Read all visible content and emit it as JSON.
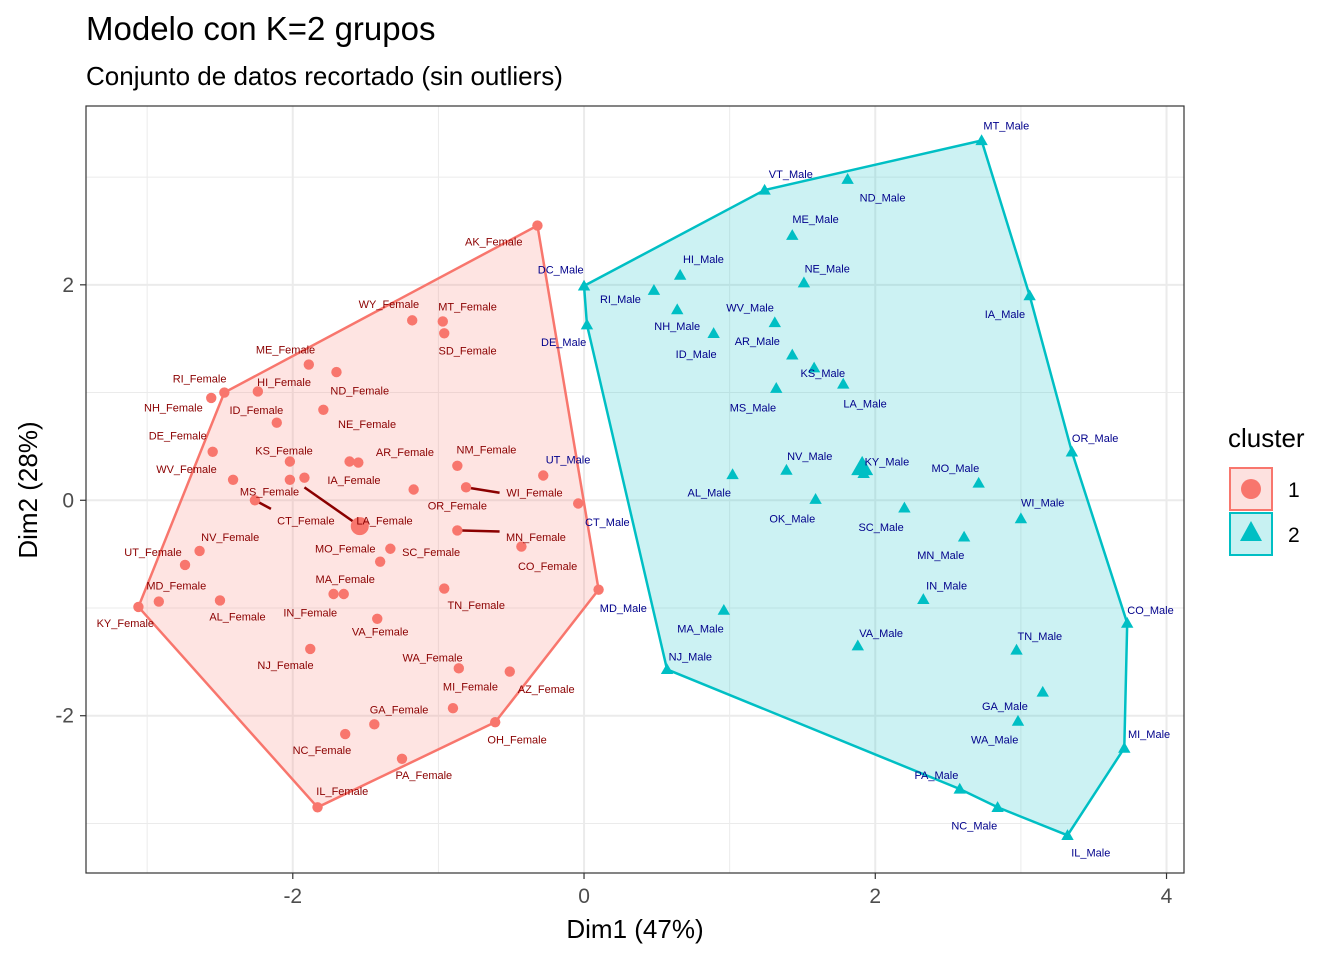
{
  "title": "Modelo con K=2 grupos",
  "subtitle": "Conjunto de datos recortado (sin outliers)",
  "chart_data": {
    "type": "scatter",
    "xlabel": "Dim1 (47%)",
    "ylabel": "Dim2 (28%)",
    "xlim": [
      -3.42,
      4.12
    ],
    "ylim": [
      -3.46,
      3.66
    ],
    "xticks": [
      -2,
      0,
      2,
      4
    ],
    "yticks": [
      -2,
      0,
      2
    ],
    "xtick_labels": [
      "-2",
      "0",
      "2",
      "4"
    ],
    "ytick_labels": [
      "-2",
      "0",
      "2"
    ],
    "grid": true,
    "legend": {
      "title": "cluster",
      "placement": "right",
      "entries": [
        "1",
        "2"
      ]
    },
    "series": [
      {
        "name": "1",
        "shape": "circle",
        "color": "#F8766D",
        "label_color": "#8B0000",
        "centroid": [
          -1.54,
          -0.24
        ],
        "hull": [
          "KY_Female",
          "RI_Female",
          "AK_Female",
          "MD_Female_edge",
          "OH_Female",
          "IL_Female"
        ],
        "points": [
          {
            "label": "AK_Female",
            "x": -0.32,
            "y": 2.55
          },
          {
            "label": "WY_Female",
            "x": -1.18,
            "y": 1.67
          },
          {
            "label": "MT_Female",
            "x": -0.97,
            "y": 1.66
          },
          {
            "label": "SD_Female",
            "x": -0.96,
            "y": 1.55
          },
          {
            "label": "ME_Female",
            "x": -1.89,
            "y": 1.26
          },
          {
            "label": "ND_Female",
            "x": -1.7,
            "y": 1.19
          },
          {
            "label": "HI_Female",
            "x": -2.24,
            "y": 1.01
          },
          {
            "label": "RI_Female",
            "x": -2.47,
            "y": 1.0
          },
          {
            "label": "NH_Female",
            "x": -2.56,
            "y": 0.95
          },
          {
            "label": "NE_Female",
            "x": -1.79,
            "y": 0.84
          },
          {
            "label": "ID_Female",
            "x": -2.11,
            "y": 0.72
          },
          {
            "label": "DE_Female",
            "x": -2.55,
            "y": 0.45
          },
          {
            "label": "KS_Female",
            "x": -2.02,
            "y": 0.36
          },
          {
            "label": "AR_Female",
            "x": -1.61,
            "y": 0.36
          },
          {
            "label": "NM_Female",
            "x": -1.55,
            "y": 0.35
          },
          {
            "label": "WV_Female",
            "x": -0.87,
            "y": 0.32
          },
          {
            "label": "IA_Female",
            "x": -1.92,
            "y": 0.21
          },
          {
            "label": "MS_Female",
            "x": -2.41,
            "y": 0.19
          },
          {
            "label": "OR_Female",
            "x": -1.17,
            "y": 0.1
          },
          {
            "label": "CT_Female",
            "x": -2.02,
            "y": 0.19
          },
          {
            "label": "UT_Female",
            "x": -2.64,
            "y": -0.47
          },
          {
            "label": "NV_Female",
            "x": -2.74,
            "y": -0.6
          },
          {
            "label": "MD_Female",
            "x": -2.92,
            "y": -0.94
          },
          {
            "label": "KY_Female",
            "x": -3.06,
            "y": -0.99
          },
          {
            "label": "AL_Female",
            "x": -2.5,
            "y": -0.93
          },
          {
            "label": "MO_Female",
            "x": -1.33,
            "y": -0.45
          },
          {
            "label": "SC_Female",
            "x": -1.4,
            "y": -0.57
          },
          {
            "label": "MA_Female",
            "x": -1.72,
            "y": -0.87
          },
          {
            "label": "IN_Female",
            "x": -1.65,
            "y": -0.87
          },
          {
            "label": "VA_Female",
            "x": -1.42,
            "y": -1.1
          },
          {
            "label": "TN_Female",
            "x": -0.96,
            "y": -0.82
          },
          {
            "label": "NJ_Female",
            "x": -1.88,
            "y": -1.38
          },
          {
            "label": "WA_Female",
            "x": -0.86,
            "y": -1.56
          },
          {
            "label": "MI_Female",
            "x": -0.51,
            "y": -1.59
          },
          {
            "label": "AZ_Female",
            "x": -0.9,
            "y": -1.93
          },
          {
            "label": "GA_Female",
            "x": -1.44,
            "y": -2.08
          },
          {
            "label": "NC_Female",
            "x": -1.64,
            "y": -2.17
          },
          {
            "label": "PA_Female",
            "x": -1.25,
            "y": -2.4
          },
          {
            "label": "OH_Female",
            "x": -0.61,
            "y": -2.06
          },
          {
            "label": "IL_Female",
            "x": -1.83,
            "y": -2.85
          },
          {
            "label": "WI_Female",
            "x": -0.81,
            "y": 0.12
          },
          {
            "label": "MN_Female",
            "x": -0.87,
            "y": -0.28
          },
          {
            "label": "CO_Female",
            "x": -0.43,
            "y": -0.43
          },
          {
            "label": "UT_Female_b",
            "x": -0.28,
            "y": 0.23
          },
          {
            "label": "CT_Female_b",
            "x": -0.04,
            "y": -0.03
          },
          {
            "label": "MD_Female_edge",
            "x": 0.1,
            "y": -0.83
          },
          {
            "label": "LA_Female",
            "x": -2.26,
            "y": 0.0
          }
        ]
      },
      {
        "name": "2",
        "shape": "triangle",
        "color": "#00BFC4",
        "label_color": "#00008B",
        "centroid": [
          1.91,
          0.31
        ],
        "hull": [
          "DC_Male",
          "VT_Male",
          "MT_Male",
          "IA_Male",
          "OR_Male",
          "CO_Male",
          "MI_Male",
          "IL_Male",
          "NC_Male",
          "PA_Male",
          "NJ_Male",
          "DE_Male"
        ],
        "points": [
          {
            "label": "MT_Male",
            "x": 2.73,
            "y": 3.34
          },
          {
            "label": "VT_Male",
            "x": 1.24,
            "y": 2.88
          },
          {
            "label": "ND_Male",
            "x": 1.81,
            "y": 2.98
          },
          {
            "label": "ME_Male",
            "x": 1.43,
            "y": 2.46
          },
          {
            "label": "HI_Male",
            "x": 0.66,
            "y": 2.09
          },
          {
            "label": "DC_Male",
            "x": 0.0,
            "y": 1.99
          },
          {
            "label": "RI_Male",
            "x": 0.48,
            "y": 1.95
          },
          {
            "label": "NE_Male",
            "x": 1.51,
            "y": 2.02
          },
          {
            "label": "IA_Male",
            "x": 3.06,
            "y": 1.9
          },
          {
            "label": "NH_Male",
            "x": 0.64,
            "y": 1.77
          },
          {
            "label": "DE_Male",
            "x": 0.02,
            "y": 1.63
          },
          {
            "label": "WV_Male",
            "x": 1.31,
            "y": 1.65
          },
          {
            "label": "ID_Male",
            "x": 0.89,
            "y": 1.55
          },
          {
            "label": "AR_Male",
            "x": 1.43,
            "y": 1.35
          },
          {
            "label": "KS_Male",
            "x": 1.58,
            "y": 1.23
          },
          {
            "label": "LA_Male",
            "x": 1.78,
            "y": 1.08
          },
          {
            "label": "MS_Male",
            "x": 1.32,
            "y": 1.04
          },
          {
            "label": "OR_Male",
            "x": 3.35,
            "y": 0.45
          },
          {
            "label": "NV_Male",
            "x": 1.39,
            "y": 0.28
          },
          {
            "label": "KY_Male",
            "x": 1.92,
            "y": 0.25
          },
          {
            "label": "MO_Male",
            "x": 2.71,
            "y": 0.16
          },
          {
            "label": "AL_Male",
            "x": 1.02,
            "y": 0.24
          },
          {
            "label": "OK_Male",
            "x": 1.59,
            "y": 0.01
          },
          {
            "label": "SC_Male",
            "x": 2.2,
            "y": -0.07
          },
          {
            "label": "WI_Male",
            "x": 3.0,
            "y": -0.17
          },
          {
            "label": "MN_Male",
            "x": 2.61,
            "y": -0.34
          },
          {
            "label": "IN_Male",
            "x": 2.33,
            "y": -0.92
          },
          {
            "label": "MA_Male",
            "x": 0.96,
            "y": -1.02
          },
          {
            "label": "CO_Male",
            "x": 3.73,
            "y": -1.14
          },
          {
            "label": "VA_Male",
            "x": 1.88,
            "y": -1.35
          },
          {
            "label": "TN_Male",
            "x": 2.97,
            "y": -1.39
          },
          {
            "label": "NJ_Male",
            "x": 0.57,
            "y": -1.57
          },
          {
            "label": "GA_Male",
            "x": 3.15,
            "y": -1.78
          },
          {
            "label": "WA_Male",
            "x": 2.98,
            "y": -2.05
          },
          {
            "label": "MI_Male",
            "x": 3.71,
            "y": -2.3
          },
          {
            "label": "PA_Male",
            "x": 2.58,
            "y": -2.68
          },
          {
            "label": "NC_Male",
            "x": 2.84,
            "y": -2.85
          },
          {
            "label": "IL_Male",
            "x": 3.32,
            "y": -3.11
          },
          {
            "label": "CT_Male",
            "x": 1.91,
            "y": 0.33
          }
        ]
      }
    ]
  },
  "visible_labels": {
    "female": [
      {
        "text": "AK_Female",
        "lx": -0.62,
        "ly": 2.4
      },
      {
        "text": "WY_Female",
        "lx": -1.34,
        "ly": 1.82
      },
      {
        "text": "MT_Female",
        "lx": -0.8,
        "ly": 1.8
      },
      {
        "text": "SD_Female",
        "lx": -0.8,
        "ly": 1.39
      },
      {
        "text": "ME_Female",
        "lx": -2.05,
        "ly": 1.4
      },
      {
        "text": "ND_Female",
        "lx": -1.54,
        "ly": 1.02
      },
      {
        "text": "RI_Female",
        "lx": -2.64,
        "ly": 1.13
      },
      {
        "text": "HI_Female",
        "lx": -2.06,
        "ly": 1.1
      },
      {
        "text": "NH_Female",
        "lx": -2.82,
        "ly": 0.86
      },
      {
        "text": "ID_Female",
        "lx": -2.25,
        "ly": 0.84
      },
      {
        "text": "NE_Female",
        "lx": -1.49,
        "ly": 0.71
      },
      {
        "text": "DE_Female",
        "lx": -2.79,
        "ly": 0.6
      },
      {
        "text": "KS_Female",
        "lx": -2.06,
        "ly": 0.46
      },
      {
        "text": "AR_Female",
        "lx": -1.23,
        "ly": 0.45
      },
      {
        "text": "NM_Female",
        "lx": -0.67,
        "ly": 0.47
      },
      {
        "text": "WV_Female",
        "lx": -2.73,
        "ly": 0.29
      },
      {
        "text": "IA_Female",
        "lx": -1.58,
        "ly": 0.19
      },
      {
        "text": "UT_Male",
        "lx": -0.11,
        "ly": 0.38,
        "male": true
      },
      {
        "text": "MS_Female",
        "lx": -2.16,
        "ly": 0.08
      },
      {
        "text": "WI_Female",
        "lx": -0.34,
        "ly": 0.07
      },
      {
        "text": "OR_Female",
        "lx": -0.87,
        "ly": -0.05
      },
      {
        "text": "CT_Female",
        "lx": -1.91,
        "ly": -0.19
      },
      {
        "text": "LA_Female",
        "lx": -1.37,
        "ly": -0.19
      },
      {
        "text": "CT_Male",
        "lx": 0.16,
        "ly": -0.2,
        "male": true
      },
      {
        "text": "MN_Female",
        "lx": -0.33,
        "ly": -0.34
      },
      {
        "text": "MO_Female",
        "lx": -1.64,
        "ly": -0.45
      },
      {
        "text": "SC_Female",
        "lx": -1.05,
        "ly": -0.48
      },
      {
        "text": "UT_Female",
        "lx": -2.96,
        "ly": -0.48
      },
      {
        "text": "NV_Female",
        "lx": -2.43,
        "ly": -0.34
      },
      {
        "text": "CO_Female",
        "lx": -0.25,
        "ly": -0.61
      },
      {
        "text": "MA_Female",
        "lx": -1.64,
        "ly": -0.73
      },
      {
        "text": "MD_Female",
        "lx": -2.8,
        "ly": -0.79
      },
      {
        "text": "TN_Female",
        "lx": -0.74,
        "ly": -0.97
      },
      {
        "text": "AL_Female",
        "lx": -2.38,
        "ly": -1.08
      },
      {
        "text": "IN_Female",
        "lx": -1.88,
        "ly": -1.04
      },
      {
        "text": "KY_Female",
        "lx": -3.15,
        "ly": -1.14
      },
      {
        "text": "VA_Female",
        "lx": -1.4,
        "ly": -1.22
      },
      {
        "text": "NJ_Female",
        "lx": -2.05,
        "ly": -1.53
      },
      {
        "text": "WA_Female",
        "lx": -1.04,
        "ly": -1.46
      },
      {
        "text": "MI_Female",
        "lx": -0.78,
        "ly": -1.73
      },
      {
        "text": "AZ_Female",
        "lx": -0.26,
        "ly": -1.75
      },
      {
        "text": "GA_Female",
        "lx": -1.27,
        "ly": -1.94
      },
      {
        "text": "OH_Female",
        "lx": -0.46,
        "ly": -2.22
      },
      {
        "text": "NC_Female",
        "lx": -1.8,
        "ly": -2.32
      },
      {
        "text": "PA_Female",
        "lx": -1.1,
        "ly": -2.55
      },
      {
        "text": "IL_Female",
        "lx": -1.66,
        "ly": -2.7
      },
      {
        "text": "MD_Male",
        "lx": 0.27,
        "ly": -1.0,
        "male": true
      },
      {
        "text": "DC_Male",
        "lx": -0.16,
        "ly": 2.14,
        "male": true
      },
      {
        "text": "DE_Male",
        "lx": -0.14,
        "ly": 1.47,
        "male": true
      }
    ],
    "male": [
      {
        "text": "MT_Male",
        "lx": 2.9,
        "ly": 3.48
      },
      {
        "text": "VT_Male",
        "lx": 1.42,
        "ly": 3.03
      },
      {
        "text": "ND_Male",
        "lx": 2.05,
        "ly": 2.81
      },
      {
        "text": "ME_Male",
        "lx": 1.59,
        "ly": 2.61
      },
      {
        "text": "HI_Male",
        "lx": 0.82,
        "ly": 2.24
      },
      {
        "text": "NE_Male",
        "lx": 1.67,
        "ly": 2.15
      },
      {
        "text": "RI_Male",
        "lx": 0.25,
        "ly": 1.87
      },
      {
        "text": "NH_Male",
        "lx": 0.64,
        "ly": 1.62
      },
      {
        "text": "IA_Male",
        "lx": 2.89,
        "ly": 1.73
      },
      {
        "text": "WV_Male",
        "lx": 1.14,
        "ly": 1.79
      },
      {
        "text": "AR_Male",
        "lx": 1.19,
        "ly": 1.48
      },
      {
        "text": "ID_Male",
        "lx": 0.77,
        "ly": 1.36
      },
      {
        "text": "KS_Male",
        "lx": 1.64,
        "ly": 1.18
      },
      {
        "text": "MS_Male",
        "lx": 1.16,
        "ly": 0.86
      },
      {
        "text": "LA_Male",
        "lx": 1.93,
        "ly": 0.9
      },
      {
        "text": "OR_Male",
        "lx": 3.51,
        "ly": 0.58
      },
      {
        "text": "NV_Male",
        "lx": 1.55,
        "ly": 0.41
      },
      {
        "text": "KY_Male",
        "lx": 2.08,
        "ly": 0.36
      },
      {
        "text": "MO_Male",
        "lx": 2.55,
        "ly": 0.3
      },
      {
        "text": "AL_Male",
        "lx": 0.86,
        "ly": 0.07
      },
      {
        "text": "WI_Male",
        "lx": 3.15,
        "ly": -0.02
      },
      {
        "text": "OK_Male",
        "lx": 1.43,
        "ly": -0.17
      },
      {
        "text": "SC_Male",
        "lx": 2.04,
        "ly": -0.25
      },
      {
        "text": "MN_Male",
        "lx": 2.45,
        "ly": -0.51
      },
      {
        "text": "IN_Male",
        "lx": 2.49,
        "ly": -0.79
      },
      {
        "text": "CO_Male",
        "lx": 3.89,
        "ly": -1.02
      },
      {
        "text": "MA_Male",
        "lx": 0.8,
        "ly": -1.19
      },
      {
        "text": "VA_Male",
        "lx": 2.04,
        "ly": -1.23
      },
      {
        "text": "TN_Male",
        "lx": 3.13,
        "ly": -1.26
      },
      {
        "text": "NJ_Male",
        "lx": 0.73,
        "ly": -1.45
      },
      {
        "text": "GA_Male",
        "lx": 2.89,
        "ly": -1.91
      },
      {
        "text": "WA_Male",
        "lx": 2.82,
        "ly": -2.22
      },
      {
        "text": "MI_Male",
        "lx": 3.88,
        "ly": -2.17
      },
      {
        "text": "PA_Male",
        "lx": 2.42,
        "ly": -2.55
      },
      {
        "text": "NC_Male",
        "lx": 2.68,
        "ly": -3.02
      },
      {
        "text": "IL_Male",
        "lx": 3.48,
        "ly": -3.27
      }
    ]
  },
  "links": [
    {
      "from": [
        -1.92,
        0.12
      ],
      "to": [
        -1.54,
        -0.24
      ]
    },
    {
      "from": [
        -2.26,
        0.0
      ],
      "to": [
        -2.15,
        -0.08
      ]
    },
    {
      "from": [
        -0.81,
        0.12
      ],
      "to": [
        -0.58,
        0.07
      ]
    },
    {
      "from": [
        -0.87,
        -0.28
      ],
      "to": [
        -0.58,
        -0.29
      ]
    }
  ]
}
